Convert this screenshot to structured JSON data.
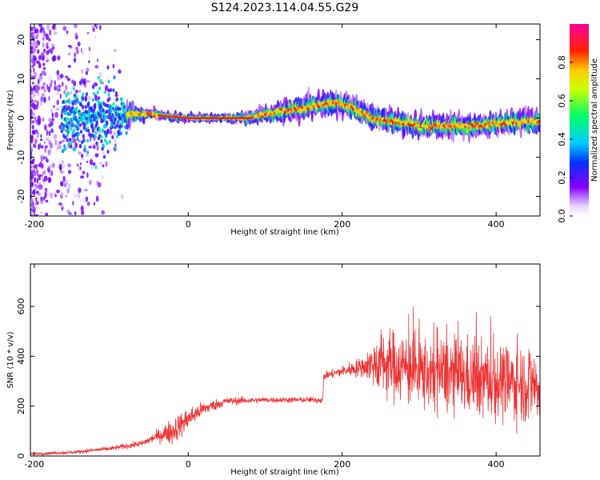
{
  "title": "S124.2023.114.04.55.G29",
  "chart_data": [
    {
      "type": "heatmap",
      "title": "",
      "xlabel": "Height of straight line (km)",
      "ylabel": "Frequency (Hz)",
      "xlim": [
        -205,
        457
      ],
      "ylim": [
        -25,
        24
      ],
      "xticks": [
        -200,
        0,
        200,
        400
      ],
      "yticks": [
        -20,
        -10,
        0,
        10,
        20
      ],
      "colorbar": {
        "label": "Normalized spectral amplitude",
        "range": [
          0,
          1
        ],
        "ticks": [
          "0.0",
          "0.2",
          "0.4",
          "0.6",
          "0.8"
        ]
      },
      "ridge": {
        "x": [
          -100,
          -85,
          -70,
          -50,
          -30,
          0,
          40,
          80,
          100,
          130,
          160,
          190,
          210,
          240,
          270,
          300,
          340,
          380,
          420,
          457
        ],
        "freq": [
          0,
          1,
          1,
          1,
          0.5,
          0,
          0,
          0,
          1,
          2,
          3,
          4,
          3,
          0,
          -1,
          -2,
          -2,
          -2,
          -1,
          -1
        ],
        "width": [
          8,
          4,
          2,
          1.2,
          1,
          1,
          1,
          1.5,
          2,
          2.5,
          2.5,
          2.5,
          2.5,
          2.5,
          2.5,
          2.5,
          2.5,
          2.5,
          2.5,
          2.5
        ]
      }
    },
    {
      "type": "line",
      "title": "",
      "xlabel": "Height of straight line (km)",
      "ylabel": "SNR (10 * v/v)",
      "xlim": [
        -205,
        457
      ],
      "ylim": [
        0,
        770
      ],
      "xticks": [
        -200,
        0,
        200,
        400
      ],
      "yticks": [
        0,
        200,
        400,
        600
      ],
      "color": "#ee3333",
      "trend": {
        "x": [
          -205,
          -150,
          -100,
          -60,
          -40,
          -20,
          0,
          20,
          50,
          100,
          150,
          175,
          176,
          200,
          230,
          250,
          300,
          400,
          457
        ],
        "mean": [
          8,
          15,
          30,
          50,
          80,
          100,
          150,
          190,
          220,
          225,
          225,
          225,
          320,
          340,
          360,
          380,
          340,
          300,
          290
        ],
        "noise": [
          4,
          6,
          8,
          12,
          20,
          50,
          40,
          25,
          15,
          10,
          10,
          12,
          15,
          20,
          40,
          120,
          140,
          140,
          140
        ]
      }
    }
  ]
}
